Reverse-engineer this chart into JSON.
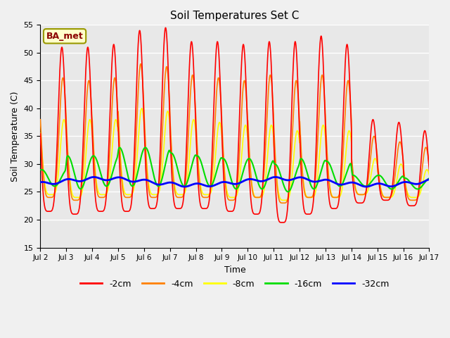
{
  "title": "Soil Temperatures Set C",
  "xlabel": "Time",
  "ylabel": "Soil Temperature (C)",
  "ylim": [
    15,
    55
  ],
  "xlim_days": [
    2,
    17
  ],
  "plot_bg_color": "#e8e8e8",
  "fig_bg_color": "#f0f0f0",
  "legend_label": "BA_met",
  "series_labels": [
    "-2cm",
    "-4cm",
    "-8cm",
    "-16cm",
    "-32cm"
  ],
  "series_colors": [
    "#ff0000",
    "#ff8000",
    "#ffff00",
    "#00dd00",
    "#0000ff"
  ],
  "series_linewidths": [
    1.2,
    1.2,
    1.2,
    1.5,
    2.0
  ],
  "xtick_labels": [
    "Jul 2",
    "Jul 3",
    "Jul 4",
    "Jul 5",
    "Jul 6",
    "Jul 7",
    "Jul 8",
    "Jul 9",
    "Jul 10",
    "Jul 11",
    "Jul 12",
    "Jul 13",
    "Jul 14",
    "Jul 15",
    "Jul 16",
    "Jul 17"
  ],
  "xtick_positions": [
    2,
    3,
    4,
    5,
    6,
    7,
    8,
    9,
    10,
    11,
    12,
    13,
    14,
    15,
    16,
    17
  ],
  "ytick_positions": [
    15,
    20,
    25,
    30,
    35,
    40,
    45,
    50,
    55
  ],
  "grid_color": "white",
  "grid_linewidth": 1.0
}
